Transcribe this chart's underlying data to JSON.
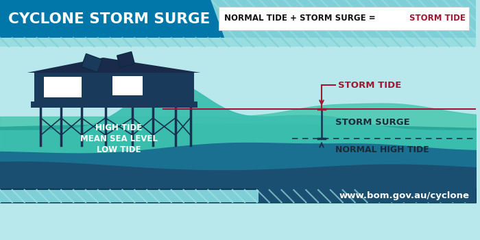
{
  "title": "CYCLONE STORM SURGE",
  "formula_text": "NORMAL TIDE + STORM SURGE = ",
  "formula_highlight": "STORM TIDE",
  "bg_header_left": "#0077a8",
  "bg_header_right_stripe": "#7dd4d8",
  "bg_main_color": "#b8e8ec",
  "ocean_deep_color": "#1a4f72",
  "ocean_mid_color": "#1a7a8c",
  "ocean_wave_teal": "#3dbfb0",
  "ocean_wave_green": "#4ec9a8",
  "ocean_wave_dark": "#1a6a80",
  "storm_tide_line_color": "#a01830",
  "arrow_color": "#1a3050",
  "label_storm_tide": "STORM TIDE",
  "label_storm_surge": "STORM SURGE",
  "label_normal_high_tide": "NORMAL HIGH TIDE",
  "label_high_tide": "HIGH TIDE",
  "label_mean_sea": "MEAN SEA LEVEL",
  "label_low_tide": "LOW TIDE",
  "footer_url": "www.bom.gov.au/cyclone",
  "footer_bg": "#1a4f72",
  "footer_accent": "#1a8899",
  "formula_bg": "#ffffff",
  "formula_color": "#111111",
  "formula_highlight_color": "#a01830",
  "house_color": "#1a3a5c",
  "house_color2": "#1a2a4a",
  "window_color": "#ffffff",
  "stilt_color": "#1a3050"
}
